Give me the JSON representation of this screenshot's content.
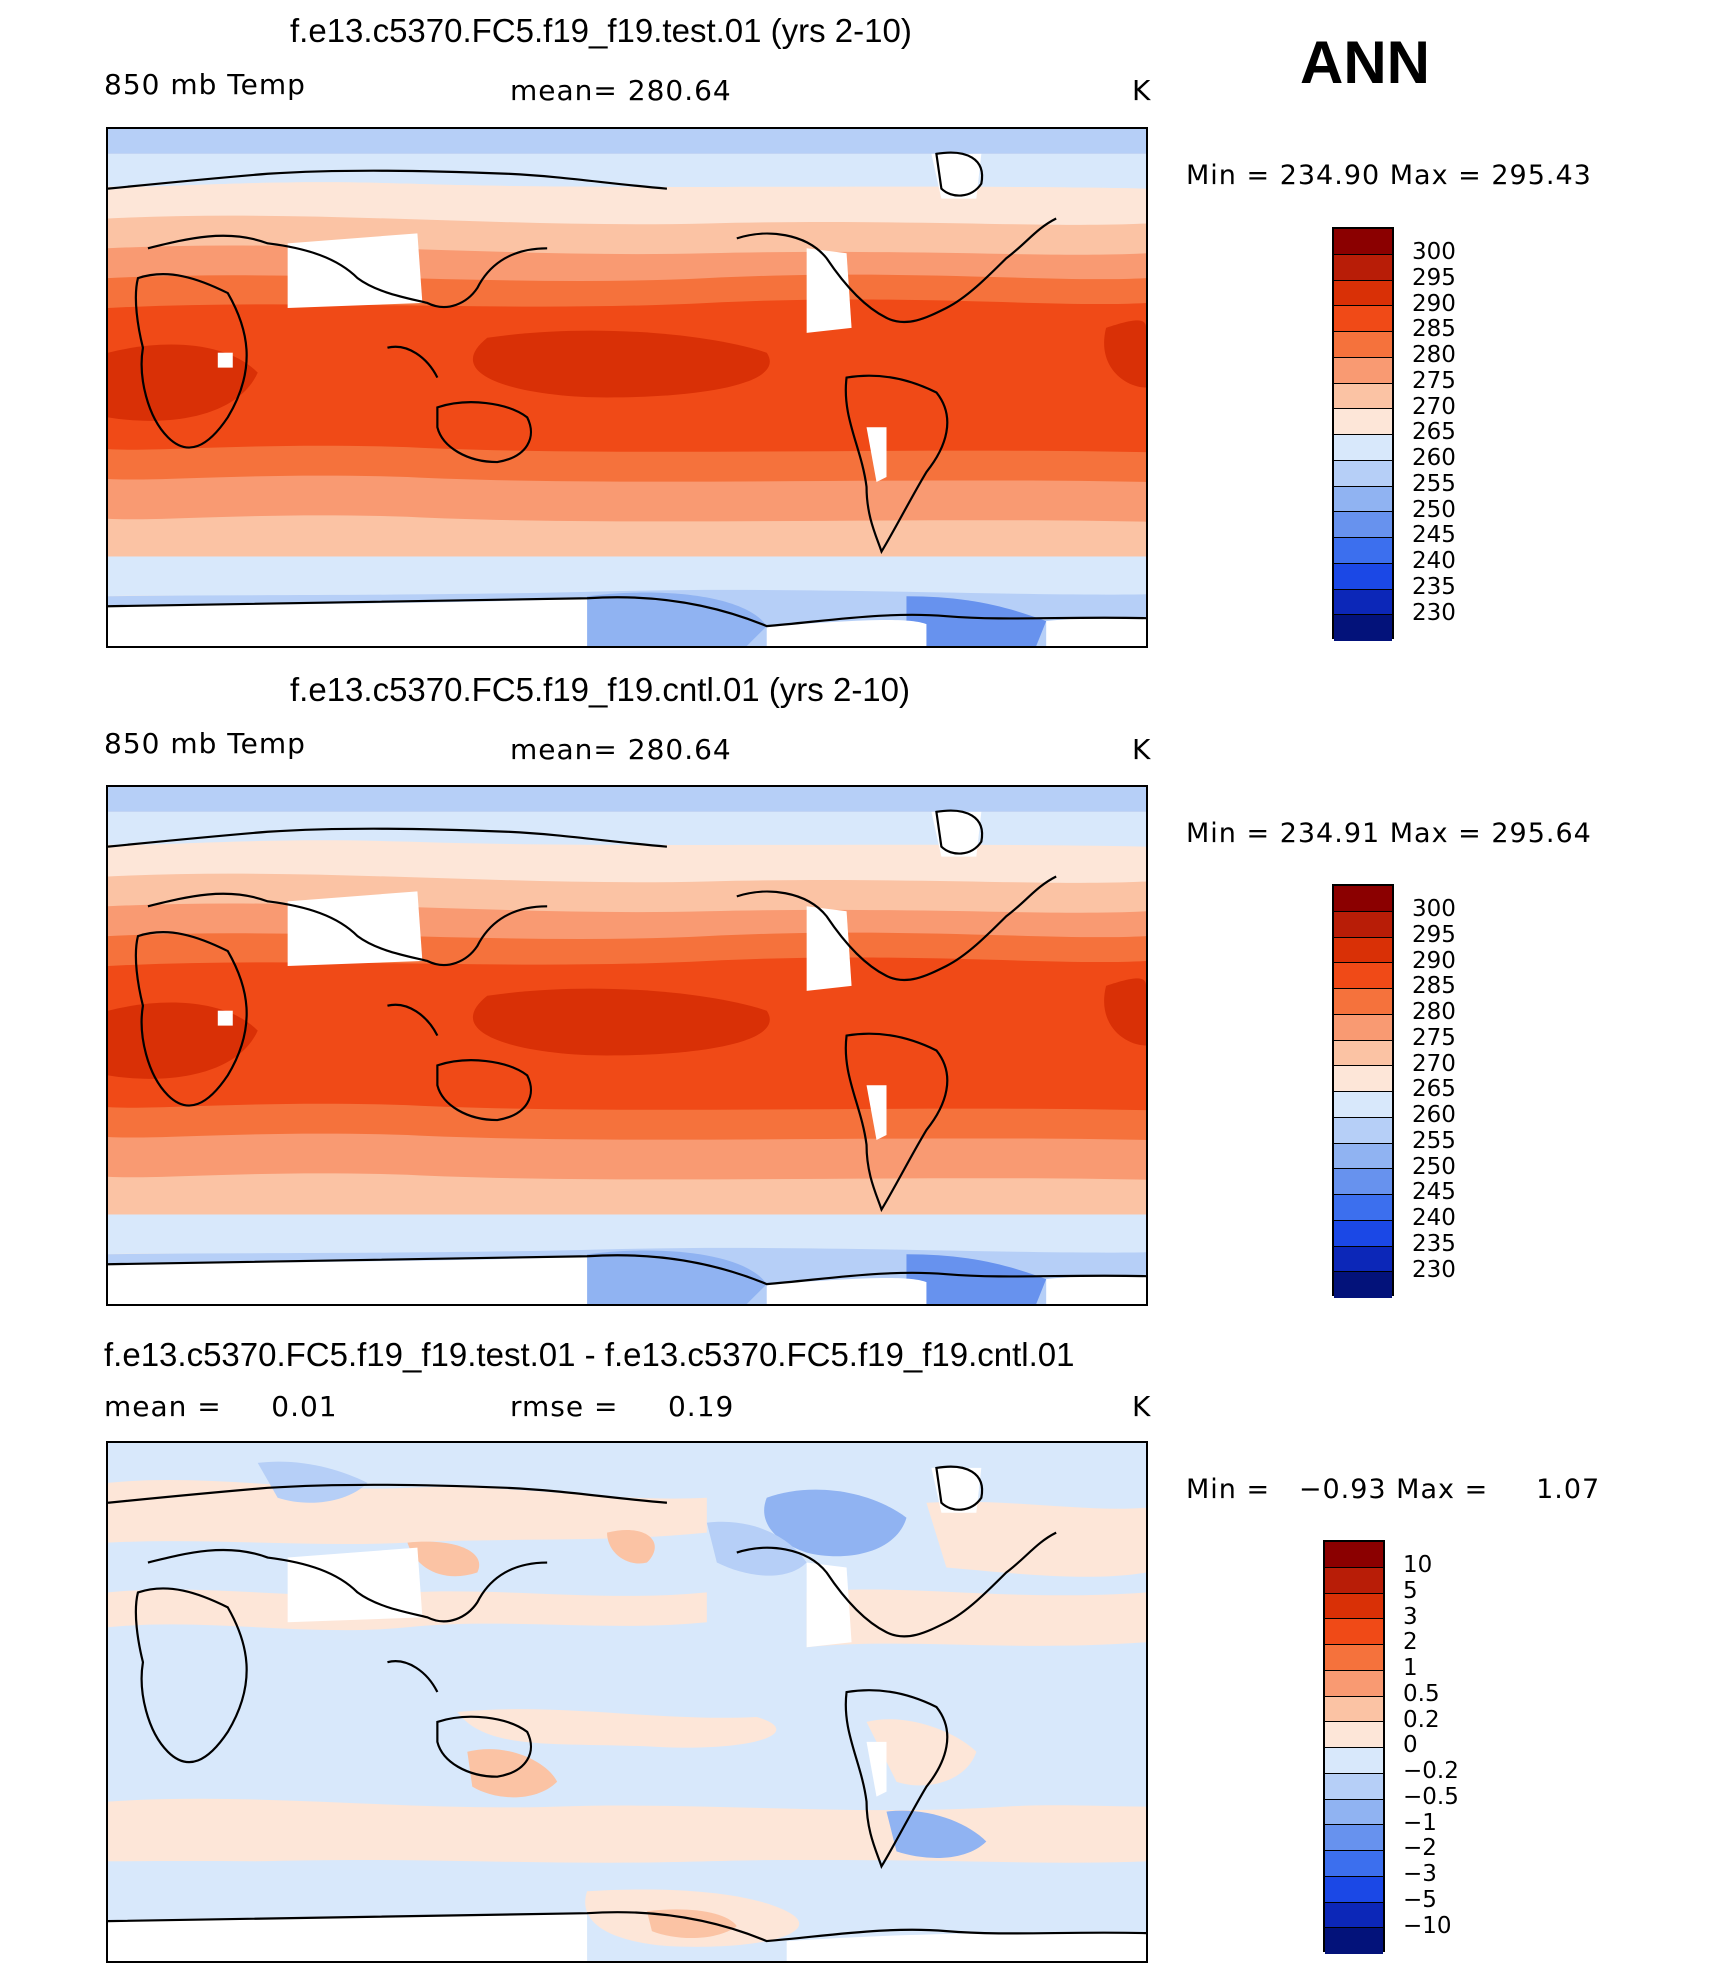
{
  "season": "ANN",
  "panels": [
    {
      "title": "f.e13.c5370.FC5.f19_f19.test.01 (yrs 2-10)",
      "left_label": "850 mb Temp",
      "center_label": "mean= 280.64",
      "right_label": "K",
      "minmax": "Min = 234.90 Max = 295.43",
      "colorbar_labels": [
        "300",
        "295",
        "290",
        "285",
        "280",
        "275",
        "270",
        "265",
        "260",
        "255",
        "250",
        "245",
        "240",
        "235",
        "230"
      ]
    },
    {
      "title": "f.e13.c5370.FC5.f19_f19.cntl.01 (yrs 2-10)",
      "left_label": "850 mb Temp",
      "center_label": "mean= 280.64",
      "right_label": "K",
      "minmax": "Min = 234.91 Max = 295.64",
      "colorbar_labels": [
        "300",
        "295",
        "290",
        "285",
        "280",
        "275",
        "270",
        "265",
        "260",
        "255",
        "250",
        "245",
        "240",
        "235",
        "230"
      ]
    },
    {
      "title": "f.e13.c5370.FC5.f19_f19.test.01 - f.e13.c5370.FC5.f19_f19.cntl.01",
      "left_label": "mean =     0.01",
      "center_label": "rmse =     0.19",
      "right_label": "K",
      "minmax": "Min =   −0.93 Max =     1.07",
      "colorbar_labels": [
        "10",
        "5",
        "3",
        "2",
        "1",
        "0.5",
        "0.2",
        "0",
        "−0.2",
        "−0.5",
        "−1",
        "−2",
        "−3",
        "−5",
        "−10"
      ]
    }
  ],
  "colors": {
    "scale": [
      "#8b0000",
      "#b81d07",
      "#d93006",
      "#f04a17",
      "#f5723c",
      "#f99a72",
      "#fbc3a4",
      "#fde6d8",
      "#d8e8fb",
      "#b6cff7",
      "#90b3f2",
      "#6792ee",
      "#3c6fee",
      "#1b48e6",
      "#0c27b8",
      "#03127a"
    ],
    "outline": "#000000"
  }
}
